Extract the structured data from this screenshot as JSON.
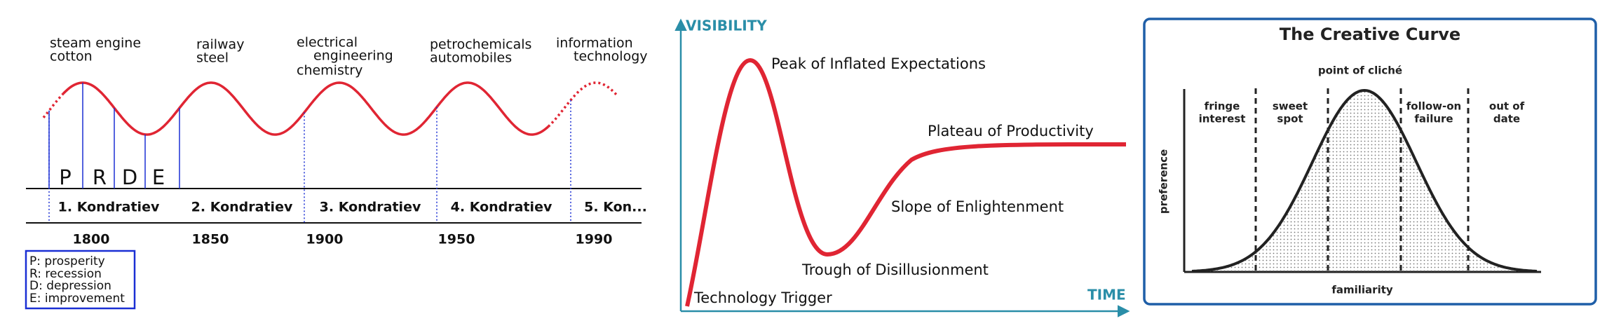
{
  "kondratiev": {
    "eras": [
      [
        "steam engine",
        "cotton"
      ],
      [
        "railway",
        "steel"
      ],
      [
        "electrical",
        "engineering",
        "chemistry"
      ],
      [
        "petrochemicals",
        "automobiles"
      ],
      [
        "information",
        "technology"
      ]
    ],
    "phases": [
      "P",
      "R",
      "D",
      "E"
    ],
    "waves": [
      "1. Kondratiev",
      "2. Kondratiev",
      "3. Kondratiev",
      "4. Kondratiev",
      "5. Kon..."
    ],
    "years": [
      "1800",
      "1850",
      "1900",
      "1950",
      "1990"
    ],
    "legend": [
      "P: prosperity",
      "R: recession",
      "D: depression",
      "E: improvement"
    ]
  },
  "hype_cycle": {
    "y_axis": "VISIBILITY",
    "x_axis": "TIME",
    "phases": [
      "Technology Trigger",
      "Peak of Inflated Expectations",
      "Trough of Disillusionment",
      "Slope of Enlightenment",
      "Plateau of Productivity"
    ]
  },
  "creative_curve": {
    "title": "The Creative Curve",
    "y_axis": "preference",
    "x_axis": "familiarity",
    "top_label": "point of cliché",
    "zones": [
      [
        "fringe",
        "interest"
      ],
      [
        "sweet",
        "spot"
      ],
      [
        "follow-on",
        "failure"
      ],
      [
        "out of",
        "date"
      ]
    ]
  }
}
